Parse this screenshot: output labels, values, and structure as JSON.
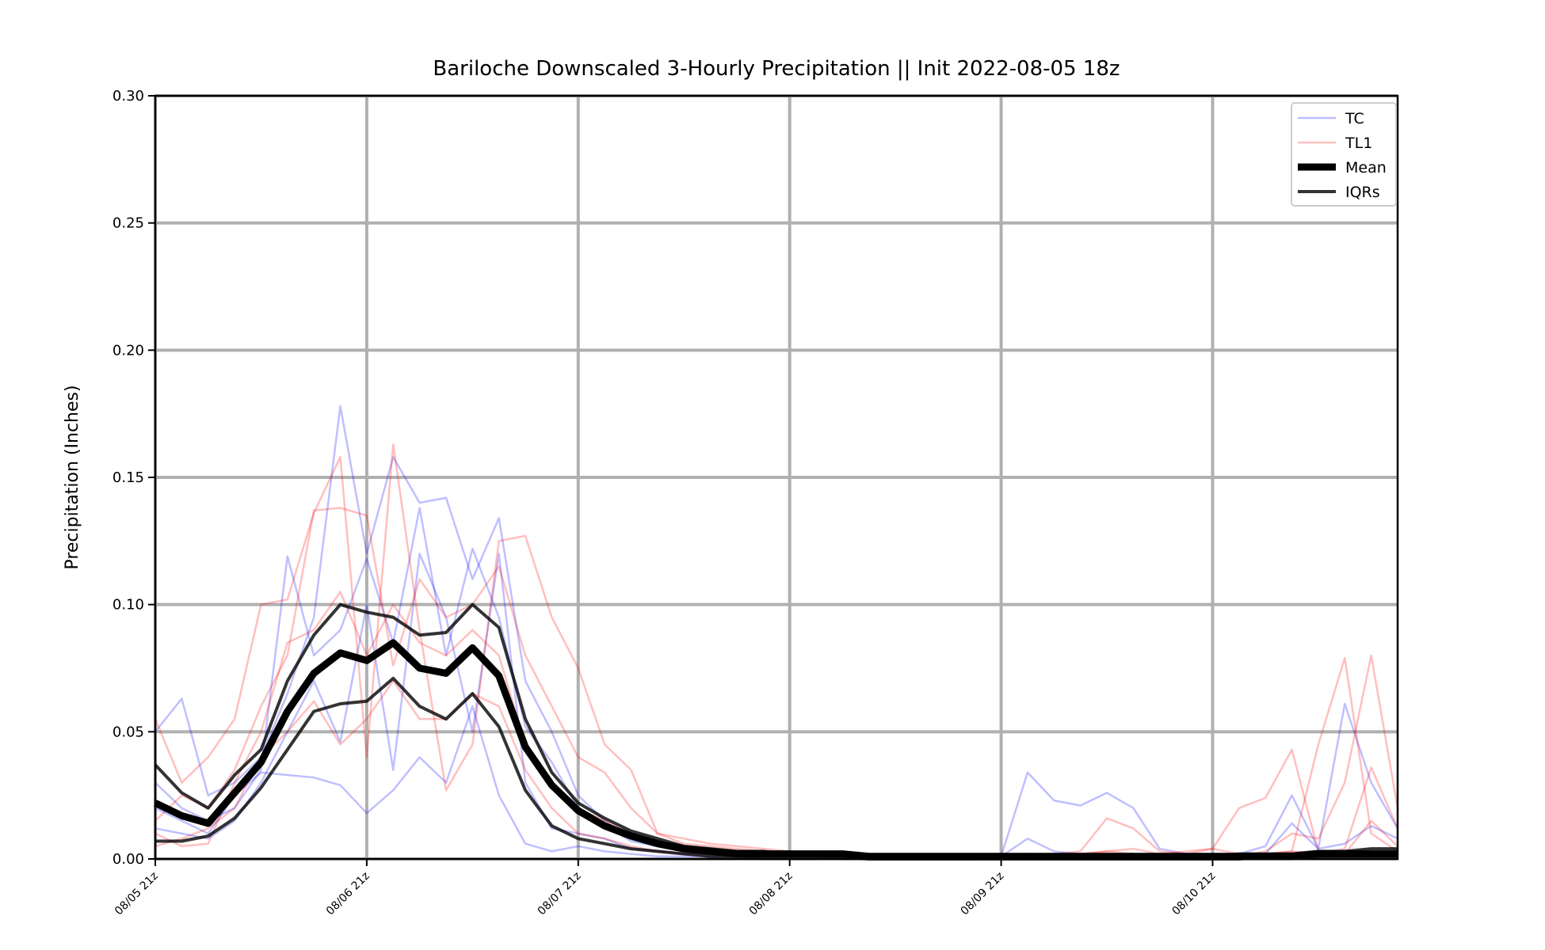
{
  "chart_data": {
    "type": "line",
    "title": "Bariloche Downscaled 3-Hourly Precipitation || Init 2022-08-05 18z",
    "xlabel": "",
    "ylabel": "Precipitation (Inches)",
    "ylim": [
      0,
      0.3
    ],
    "yticks": [
      "0.00",
      "0.05",
      "0.10",
      "0.15",
      "0.20",
      "0.25",
      "0.30"
    ],
    "x_ticks": [
      "08/05 21z",
      "08/06 21z",
      "08/07 21z",
      "08/08 21z",
      "08/09 21z",
      "08/10 21z"
    ],
    "x_step_hours": 3,
    "grid": true,
    "legend_position": "top-right",
    "legend": [
      {
        "label": "TC",
        "color": "#0000ff",
        "style": "thin-translucent"
      },
      {
        "label": "TL1",
        "color": "#ff0000",
        "style": "thin-translucent"
      },
      {
        "label": "Mean",
        "color": "#000000",
        "style": "thick"
      },
      {
        "label": "IQRs",
        "color": "#000000",
        "style": "medium"
      }
    ],
    "series": [
      {
        "name": "Mean",
        "values": [
          0.022,
          0.017,
          0.014,
          0.026,
          0.038,
          0.058,
          0.073,
          0.081,
          0.078,
          0.085,
          0.075,
          0.073,
          0.083,
          0.072,
          0.044,
          0.029,
          0.019,
          0.013,
          0.009,
          0.006,
          0.004,
          0.003,
          0.002,
          0.002,
          0.002,
          0.002,
          0.002,
          0.001,
          0.001,
          0.001,
          0.001,
          0.001,
          0.001,
          0.001,
          0.001,
          0.001,
          0.001,
          0.001,
          0.001,
          0.001,
          0.001,
          0.001,
          0.001,
          0.001,
          0.002,
          0.002,
          0.002,
          0.002
        ]
      },
      {
        "name": "IQR upper",
        "values": [
          0.037,
          0.026,
          0.02,
          0.033,
          0.043,
          0.07,
          0.088,
          0.1,
          0.097,
          0.095,
          0.088,
          0.089,
          0.1,
          0.091,
          0.055,
          0.034,
          0.022,
          0.016,
          0.011,
          0.008,
          0.005,
          0.004,
          0.003,
          0.003,
          0.002,
          0.002,
          0.002,
          0.001,
          0.001,
          0.001,
          0.001,
          0.001,
          0.001,
          0.001,
          0.001,
          0.001,
          0.001,
          0.001,
          0.001,
          0.001,
          0.001,
          0.002,
          0.002,
          0.002,
          0.003,
          0.003,
          0.004,
          0.004
        ]
      },
      {
        "name": "IQR lower",
        "values": [
          0.007,
          0.007,
          0.009,
          0.016,
          0.028,
          0.043,
          0.058,
          0.061,
          0.062,
          0.071,
          0.06,
          0.055,
          0.065,
          0.052,
          0.027,
          0.013,
          0.008,
          0.006,
          0.004,
          0.003,
          0.002,
          0.001,
          0.001,
          0.001,
          0.001,
          0.001,
          0.001,
          0.0,
          0.0,
          0.0,
          0.0,
          0.0,
          0.0,
          0.0,
          0.0,
          0.0,
          0.0,
          0.0,
          0.0,
          0.0,
          0.0,
          0.0,
          0.001,
          0.001,
          0.001,
          0.001,
          0.001,
          0.001
        ]
      },
      {
        "name": "TC",
        "values": [
          0.05,
          0.063,
          0.025,
          0.03,
          0.04,
          0.065,
          0.095,
          0.178,
          0.12,
          0.158,
          0.14,
          0.142,
          0.11,
          0.134,
          0.07,
          0.05,
          0.025,
          0.015,
          0.008,
          0.005,
          0.004,
          0.003,
          0.002,
          0.002,
          0.001,
          0.001,
          0.001,
          0.001,
          0.001,
          0.001,
          0.001,
          0.001,
          0.001,
          0.034,
          0.023,
          0.021,
          0.026,
          0.02,
          0.004,
          0.002,
          0.002,
          0.002,
          0.005,
          0.025,
          0.004,
          0.061,
          0.03,
          0.012
        ]
      },
      {
        "name": "TC",
        "values": [
          0.03,
          0.02,
          0.015,
          0.02,
          0.035,
          0.119,
          0.08,
          0.09,
          0.118,
          0.085,
          0.138,
          0.08,
          0.122,
          0.095,
          0.052,
          0.038,
          0.02,
          0.013,
          0.007,
          0.005,
          0.003,
          0.002,
          0.002,
          0.001,
          0.001,
          0.001,
          0.001,
          0.0,
          0.0,
          0.0,
          0.0,
          0.0,
          0.001,
          0.008,
          0.003,
          0.002,
          0.002,
          0.002,
          0.001,
          0.001,
          0.001,
          0.001,
          0.002,
          0.014,
          0.004,
          0.006,
          0.013,
          0.008
        ]
      },
      {
        "name": "TC",
        "values": [
          0.012,
          0.01,
          0.008,
          0.015,
          0.03,
          0.05,
          0.07,
          0.046,
          0.1,
          0.035,
          0.12,
          0.095,
          0.05,
          0.12,
          0.03,
          0.012,
          0.01,
          0.008,
          0.004,
          0.003,
          0.002,
          0.002,
          0.001,
          0.001,
          0.001,
          0.001,
          0.0,
          0.0,
          0.0,
          0.0,
          0.0,
          0.0,
          0.001,
          0.002,
          0.001,
          0.001,
          0.001,
          0.001,
          0.001,
          0.001,
          0.001,
          0.001,
          0.001,
          0.002,
          0.002,
          0.003,
          0.002,
          0.002
        ]
      },
      {
        "name": "TC",
        "values": [
          0.02,
          0.015,
          0.01,
          0.025,
          0.034,
          0.033,
          0.032,
          0.029,
          0.018,
          0.027,
          0.04,
          0.03,
          0.06,
          0.025,
          0.006,
          0.003,
          0.005,
          0.003,
          0.002,
          0.001,
          0.001,
          0.001,
          0.001,
          0.0,
          0.0,
          0.0,
          0.0,
          0.0,
          0.0,
          0.0,
          0.0,
          0.0,
          0.0,
          0.001,
          0.001,
          0.001,
          0.001,
          0.001,
          0.001,
          0.001,
          0.001,
          0.001,
          0.001,
          0.001,
          0.001,
          0.002,
          0.002,
          0.001
        ]
      },
      {
        "name": "TL1",
        "values": [
          0.055,
          0.03,
          0.04,
          0.055,
          0.1,
          0.102,
          0.136,
          0.158,
          0.04,
          0.163,
          0.09,
          0.027,
          0.045,
          0.125,
          0.127,
          0.095,
          0.075,
          0.045,
          0.035,
          0.01,
          0.006,
          0.005,
          0.004,
          0.003,
          0.002,
          0.001,
          0.001,
          0.001,
          0.002,
          0.001,
          0.001,
          0.001,
          0.001,
          0.002,
          0.001,
          0.002,
          0.003,
          0.004,
          0.002,
          0.003,
          0.004,
          0.02,
          0.024,
          0.043,
          0.003,
          0.002,
          0.015,
          0.005
        ]
      },
      {
        "name": "TL1",
        "values": [
          0.015,
          0.025,
          0.02,
          0.035,
          0.06,
          0.08,
          0.137,
          0.138,
          0.135,
          0.076,
          0.11,
          0.095,
          0.1,
          0.115,
          0.08,
          0.06,
          0.04,
          0.034,
          0.02,
          0.01,
          0.008,
          0.006,
          0.005,
          0.004,
          0.003,
          0.002,
          0.002,
          0.001,
          0.001,
          0.001,
          0.002,
          0.001,
          0.001,
          0.001,
          0.002,
          0.003,
          0.016,
          0.012,
          0.003,
          0.002,
          0.004,
          0.002,
          0.002,
          0.003,
          0.045,
          0.079,
          0.01,
          0.003
        ]
      },
      {
        "name": "TL1",
        "values": [
          0.005,
          0.008,
          0.012,
          0.02,
          0.04,
          0.05,
          0.062,
          0.045,
          0.055,
          0.07,
          0.055,
          0.055,
          0.065,
          0.06,
          0.035,
          0.02,
          0.01,
          0.008,
          0.005,
          0.003,
          0.002,
          0.002,
          0.001,
          0.001,
          0.001,
          0.001,
          0.0,
          0.0,
          0.0,
          0.0,
          0.0,
          0.0,
          0.001,
          0.001,
          0.001,
          0.002,
          0.003,
          0.002,
          0.001,
          0.001,
          0.001,
          0.001,
          0.003,
          0.01,
          0.008,
          0.03,
          0.08,
          0.02
        ]
      },
      {
        "name": "TL1",
        "values": [
          0.01,
          0.005,
          0.006,
          0.03,
          0.05,
          0.085,
          0.09,
          0.105,
          0.08,
          0.1,
          0.085,
          0.08,
          0.09,
          0.08,
          0.045,
          0.03,
          0.02,
          0.015,
          0.01,
          0.006,
          0.004,
          0.003,
          0.002,
          0.002,
          0.001,
          0.001,
          0.001,
          0.001,
          0.001,
          0.001,
          0.001,
          0.001,
          0.001,
          0.001,
          0.001,
          0.001,
          0.001,
          0.001,
          0.001,
          0.001,
          0.001,
          0.001,
          0.002,
          0.003,
          0.002,
          0.004,
          0.036,
          0.012
        ]
      }
    ]
  }
}
